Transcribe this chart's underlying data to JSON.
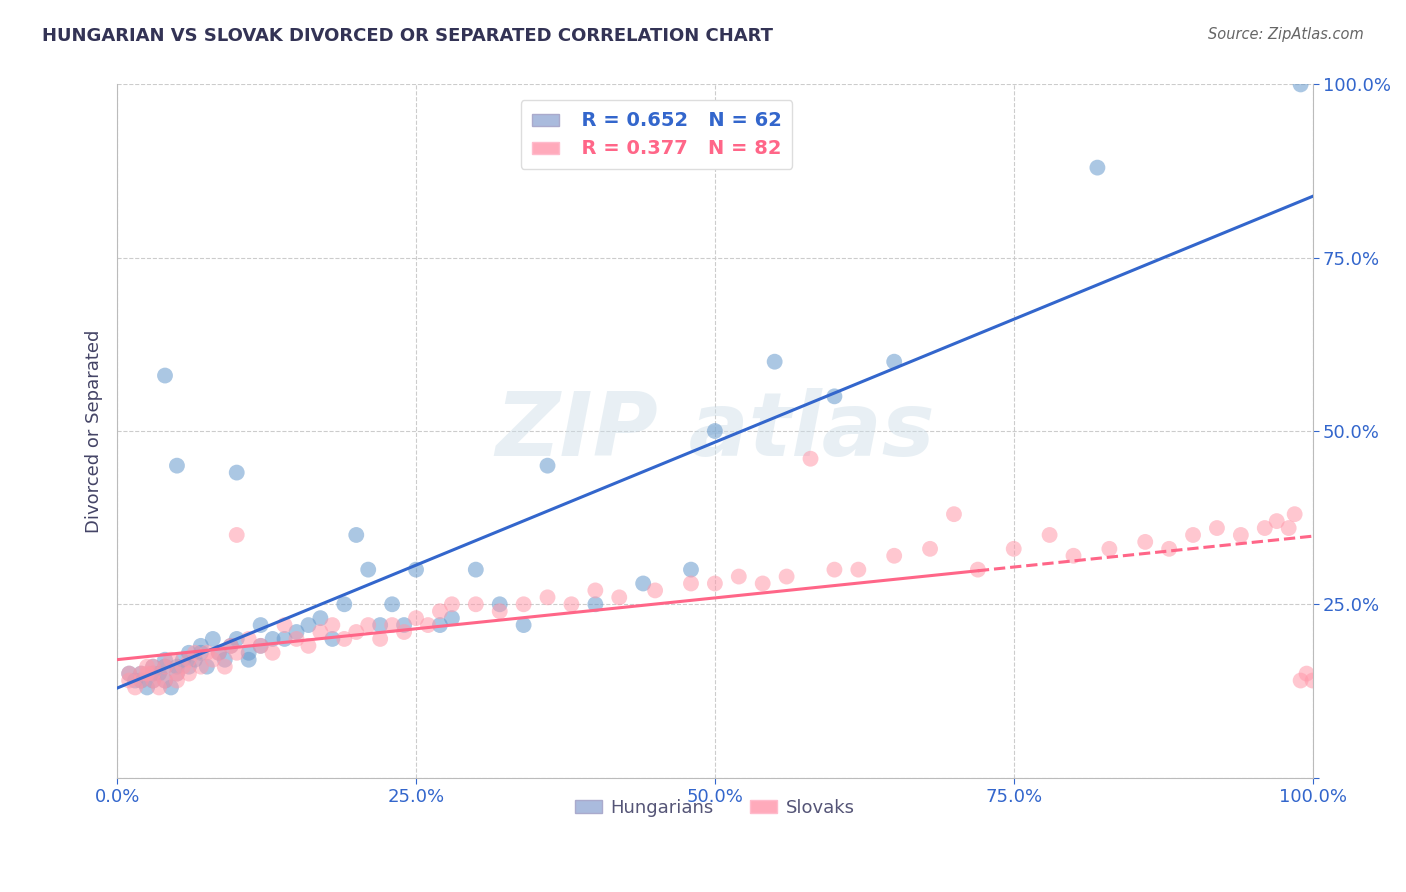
{
  "title": "HUNGARIAN VS SLOVAK DIVORCED OR SEPARATED CORRELATION CHART",
  "source": "Source: ZipAtlas.com",
  "ylabel": "Divorced or Separated",
  "hungarian_R": 0.652,
  "hungarian_N": 62,
  "slovak_R": 0.377,
  "slovak_N": 82,
  "hungarian_color": "#6699cc",
  "slovak_color": "#ff99aa",
  "hungarian_line_color": "#3366cc",
  "slovak_line_color": "#ff6688",
  "title_color": "#333355",
  "tick_color": "#3366cc",
  "grid_color": "#cccccc",
  "legend_box_color_h": "#aabbdd",
  "legend_box_color_s": "#ffaabb",
  "xlim": [
    0,
    1
  ],
  "ylim": [
    0,
    1
  ],
  "hungarian_scatter_x": [
    0.01,
    0.015,
    0.02,
    0.02,
    0.025,
    0.03,
    0.03,
    0.03,
    0.035,
    0.04,
    0.04,
    0.04,
    0.04,
    0.045,
    0.05,
    0.05,
    0.05,
    0.055,
    0.06,
    0.06,
    0.065,
    0.07,
    0.07,
    0.075,
    0.08,
    0.085,
    0.09,
    0.095,
    0.1,
    0.1,
    0.11,
    0.11,
    0.12,
    0.12,
    0.13,
    0.14,
    0.15,
    0.16,
    0.17,
    0.18,
    0.19,
    0.2,
    0.21,
    0.22,
    0.23,
    0.24,
    0.25,
    0.27,
    0.28,
    0.3,
    0.32,
    0.34,
    0.36,
    0.4,
    0.44,
    0.48,
    0.5,
    0.55,
    0.6,
    0.65,
    0.82,
    0.99
  ],
  "hungarian_scatter_y": [
    0.15,
    0.14,
    0.15,
    0.14,
    0.13,
    0.14,
    0.16,
    0.15,
    0.15,
    0.17,
    0.16,
    0.14,
    0.58,
    0.13,
    0.15,
    0.45,
    0.16,
    0.17,
    0.18,
    0.16,
    0.17,
    0.18,
    0.19,
    0.16,
    0.2,
    0.18,
    0.17,
    0.19,
    0.2,
    0.44,
    0.18,
    0.17,
    0.19,
    0.22,
    0.2,
    0.2,
    0.21,
    0.22,
    0.23,
    0.2,
    0.25,
    0.35,
    0.3,
    0.22,
    0.25,
    0.22,
    0.3,
    0.22,
    0.23,
    0.3,
    0.25,
    0.22,
    0.45,
    0.25,
    0.28,
    0.3,
    0.5,
    0.6,
    0.55,
    0.6,
    0.88,
    1.0
  ],
  "slovak_scatter_x": [
    0.01,
    0.01,
    0.015,
    0.02,
    0.02,
    0.025,
    0.025,
    0.03,
    0.03,
    0.03,
    0.035,
    0.04,
    0.04,
    0.045,
    0.05,
    0.05,
    0.055,
    0.06,
    0.06,
    0.065,
    0.07,
    0.075,
    0.08,
    0.085,
    0.09,
    0.095,
    0.1,
    0.1,
    0.11,
    0.12,
    0.13,
    0.14,
    0.15,
    0.16,
    0.17,
    0.18,
    0.19,
    0.2,
    0.21,
    0.22,
    0.23,
    0.24,
    0.25,
    0.26,
    0.27,
    0.28,
    0.3,
    0.32,
    0.34,
    0.36,
    0.38,
    0.4,
    0.42,
    0.45,
    0.48,
    0.5,
    0.52,
    0.54,
    0.56,
    0.58,
    0.6,
    0.62,
    0.65,
    0.68,
    0.7,
    0.72,
    0.75,
    0.78,
    0.8,
    0.83,
    0.86,
    0.88,
    0.9,
    0.92,
    0.94,
    0.96,
    0.97,
    0.98,
    0.985,
    0.99,
    0.995,
    1.0
  ],
  "slovak_scatter_y": [
    0.14,
    0.15,
    0.13,
    0.15,
    0.14,
    0.16,
    0.15,
    0.14,
    0.16,
    0.15,
    0.13,
    0.16,
    0.14,
    0.17,
    0.15,
    0.14,
    0.16,
    0.17,
    0.15,
    0.18,
    0.16,
    0.18,
    0.17,
    0.18,
    0.16,
    0.19,
    0.18,
    0.35,
    0.2,
    0.19,
    0.18,
    0.22,
    0.2,
    0.19,
    0.21,
    0.22,
    0.2,
    0.21,
    0.22,
    0.2,
    0.22,
    0.21,
    0.23,
    0.22,
    0.24,
    0.25,
    0.25,
    0.24,
    0.25,
    0.26,
    0.25,
    0.27,
    0.26,
    0.27,
    0.28,
    0.28,
    0.29,
    0.28,
    0.29,
    0.46,
    0.3,
    0.3,
    0.32,
    0.33,
    0.38,
    0.3,
    0.33,
    0.35,
    0.32,
    0.33,
    0.34,
    0.33,
    0.35,
    0.36,
    0.35,
    0.36,
    0.37,
    0.36,
    0.38,
    0.14,
    0.15,
    0.14
  ]
}
